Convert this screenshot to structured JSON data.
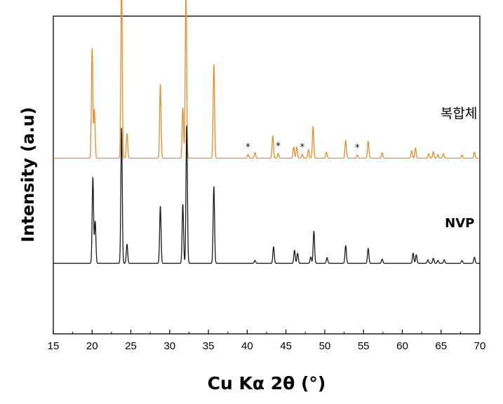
{
  "chart_data": {
    "type": "line",
    "xlabel": "Cu Kα 2θ (°)",
    "ylabel": "Intensity (a.u)",
    "xlim": [
      15,
      70
    ],
    "ylim": [
      0,
      1
    ],
    "grid": false,
    "legend": "inline labels at right of each trace",
    "x_ticks": [
      15,
      20,
      25,
      30,
      35,
      40,
      45,
      50,
      55,
      60,
      65,
      70
    ],
    "series": [
      {
        "name": "복합체",
        "color": "#ee8a2a",
        "offset": 0.553,
        "peaks": [
          [
            20.0,
            0.345
          ],
          [
            20.3,
            0.152
          ],
          [
            23.8,
            0.547
          ],
          [
            24.5,
            0.077
          ],
          [
            28.8,
            0.232
          ],
          [
            31.7,
            0.158
          ],
          [
            32.1,
            0.51
          ],
          [
            35.7,
            0.295
          ],
          [
            40.1,
            0.012
          ],
          [
            41.0,
            0.018
          ],
          [
            43.3,
            0.07
          ],
          [
            44.0,
            0.015
          ],
          [
            46.0,
            0.035
          ],
          [
            46.4,
            0.035
          ],
          [
            47.1,
            0.012
          ],
          [
            47.9,
            0.027
          ],
          [
            48.5,
            0.099
          ],
          [
            50.2,
            0.019
          ],
          [
            52.7,
            0.056
          ],
          [
            54.2,
            0.01
          ],
          [
            55.6,
            0.053
          ],
          [
            57.4,
            0.017
          ],
          [
            61.2,
            0.023
          ],
          [
            61.7,
            0.032
          ],
          [
            63.4,
            0.014
          ],
          [
            64.0,
            0.021
          ],
          [
            64.6,
            0.012
          ],
          [
            65.3,
            0.014
          ],
          [
            67.7,
            0.01
          ],
          [
            69.3,
            0.019
          ]
        ],
        "annotations": [
          {
            "x": 40.1,
            "text": "*"
          },
          {
            "x": 44.0,
            "text": "*"
          },
          {
            "x": 47.1,
            "text": "*"
          },
          {
            "x": 54.2,
            "text": "*"
          }
        ]
      },
      {
        "name": "NVP",
        "color": "#1a1a1a",
        "offset": 0.222,
        "peaks": [
          [
            20.1,
            0.27
          ],
          [
            20.4,
            0.131
          ],
          [
            23.8,
            0.425
          ],
          [
            24.5,
            0.06
          ],
          [
            28.8,
            0.179
          ],
          [
            31.7,
            0.185
          ],
          [
            32.2,
            0.433
          ],
          [
            35.7,
            0.241
          ],
          [
            41.0,
            0.009
          ],
          [
            43.4,
            0.052
          ],
          [
            46.1,
            0.041
          ],
          [
            46.5,
            0.032
          ],
          [
            48.2,
            0.02
          ],
          [
            48.6,
            0.101
          ],
          [
            50.3,
            0.018
          ],
          [
            52.7,
            0.056
          ],
          [
            55.6,
            0.047
          ],
          [
            57.4,
            0.013
          ],
          [
            61.4,
            0.032
          ],
          [
            61.8,
            0.027
          ],
          [
            63.3,
            0.011
          ],
          [
            64.0,
            0.016
          ],
          [
            64.6,
            0.009
          ],
          [
            65.4,
            0.011
          ],
          [
            67.7,
            0.009
          ],
          [
            69.3,
            0.019
          ]
        ]
      }
    ]
  }
}
